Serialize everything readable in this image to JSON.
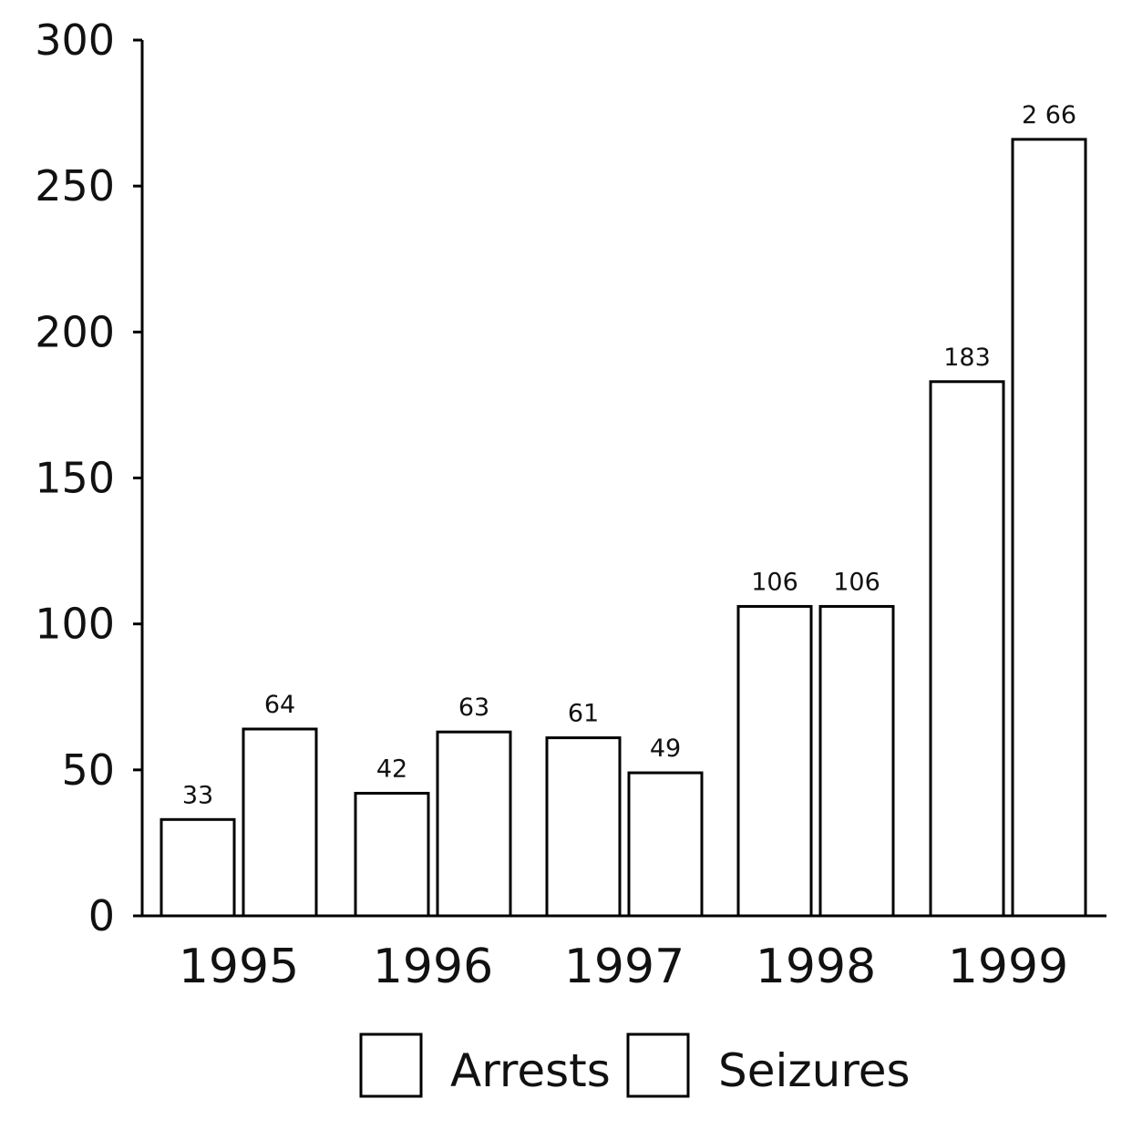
{
  "chart_data": {
    "type": "bar",
    "title": "",
    "xlabel": "",
    "ylabel": "",
    "ylim": [
      0,
      300
    ],
    "yticks": [
      0,
      50,
      100,
      150,
      200,
      250,
      300
    ],
    "categories": [
      "1995",
      "1996",
      "1997",
      "1998",
      "1999"
    ],
    "series": [
      {
        "name": "Arrests",
        "values": [
          33,
          42,
          61,
          106,
          183
        ],
        "labels": [
          "33",
          "42",
          "61",
          "106",
          "183"
        ]
      },
      {
        "name": "Seizures",
        "values": [
          64,
          63,
          49,
          106,
          266
        ],
        "labels": [
          "64",
          "63",
          "49",
          "106",
          "2 66"
        ]
      }
    ],
    "grid": false,
    "legend_position": "bottom",
    "colors": {
      "bar_fill": "#ffffff",
      "bar_stroke": "#000000"
    }
  }
}
